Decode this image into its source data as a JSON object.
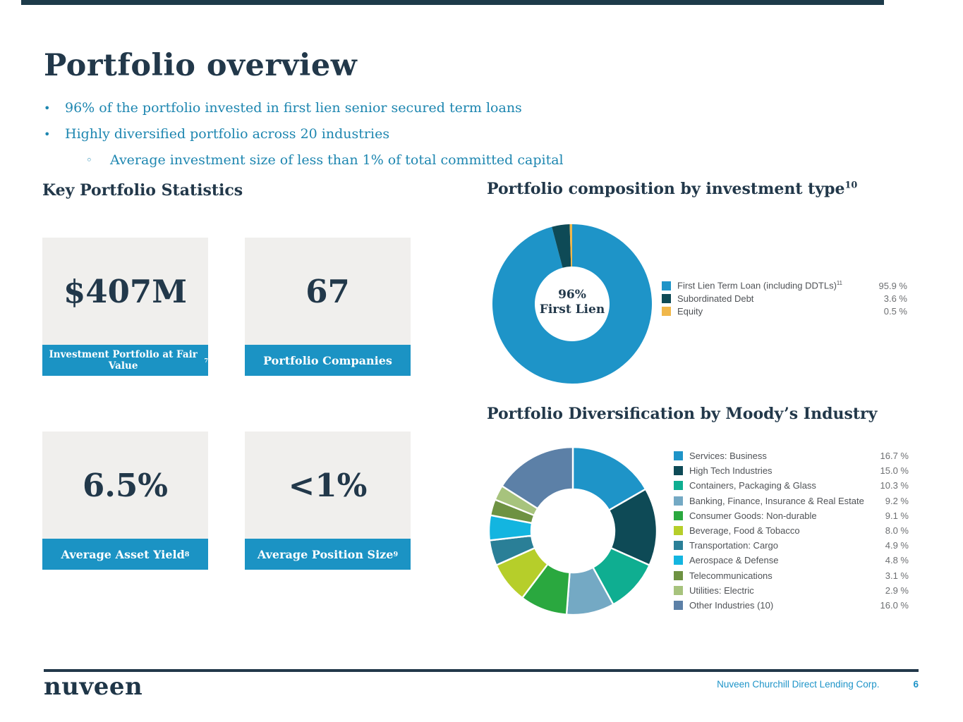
{
  "slide": {
    "title": "Portfolio overview"
  },
  "bullets": [
    {
      "level": 1,
      "text": "96% of the portfolio invested in first lien senior secured term loans"
    },
    {
      "level": 1,
      "text": "Highly diversified portfolio across 20 industries"
    },
    {
      "level": 2,
      "text": "Average investment size of less than 1% of total committed capital"
    }
  ],
  "stats": {
    "heading": "Key Portfolio Statistics",
    "cards": [
      {
        "value": "$407M",
        "label": "Investment Portfolio at Fair Value",
        "footnote": "7"
      },
      {
        "value": "67",
        "label": "Portfolio Companies",
        "footnote": ""
      },
      {
        "value": "6.5%",
        "label": "Average Asset Yield",
        "footnote": "8"
      },
      {
        "value": "<1%",
        "label": "Average Position Size",
        "footnote": "9"
      }
    ]
  },
  "sections": {
    "composition_heading": "Portfolio composition by investment type",
    "composition_footnote": "10",
    "diversification_heading": "Portfolio Diversification by Moody’s Industry"
  },
  "footer": {
    "logo": "nuveen",
    "company": "Nuveen Churchill Direct Lending Corp.",
    "page": "6"
  },
  "colors": {
    "navy": "#22384a",
    "accent_blue": "#1b93c4",
    "bullet_blue": "#1d86b0",
    "card_gray": "#f0efed",
    "legend_text": "#4f5256"
  },
  "chart_data": [
    {
      "type": "pie",
      "subtype": "donut",
      "title": "Portfolio composition by investment type",
      "labels": [
        "First Lien Term Loan (including DDTLs)",
        "Subordinated Debt",
        "Equity"
      ],
      "label_footnotes": [
        "11",
        "",
        ""
      ],
      "values": [
        95.9,
        3.6,
        0.5
      ],
      "value_suffix": " %",
      "colors": [
        "#1e94c8",
        "#0e4a56",
        "#f0b74a"
      ],
      "center_label_line1": "96%",
      "center_label_line2": "First Lien",
      "legend_position": "right"
    },
    {
      "type": "pie",
      "subtype": "donut",
      "title": "Portfolio Diversification by Moody’s Industry",
      "labels": [
        "Services: Business",
        "High Tech Industries",
        "Containers, Packaging & Glass",
        "Banking, Finance, Insurance & Real Estate",
        "Consumer Goods: Non-durable",
        "Beverage, Food & Tobacco",
        "Transportation: Cargo",
        "Aerospace & Defense",
        "Telecommunications",
        "Utilities: Electric",
        "Other Industries (10)"
      ],
      "values": [
        16.7,
        15.0,
        10.3,
        9.2,
        9.1,
        8.0,
        4.9,
        4.8,
        3.1,
        2.9,
        16.0
      ],
      "value_suffix": " %",
      "colors": [
        "#1e94c8",
        "#0e4a56",
        "#0fae91",
        "#74a9c4",
        "#2aa83f",
        "#b6ce2a",
        "#2a7f97",
        "#13b5e0",
        "#6e9242",
        "#a7c37d",
        "#5c80a7"
      ],
      "legend_position": "right"
    }
  ]
}
